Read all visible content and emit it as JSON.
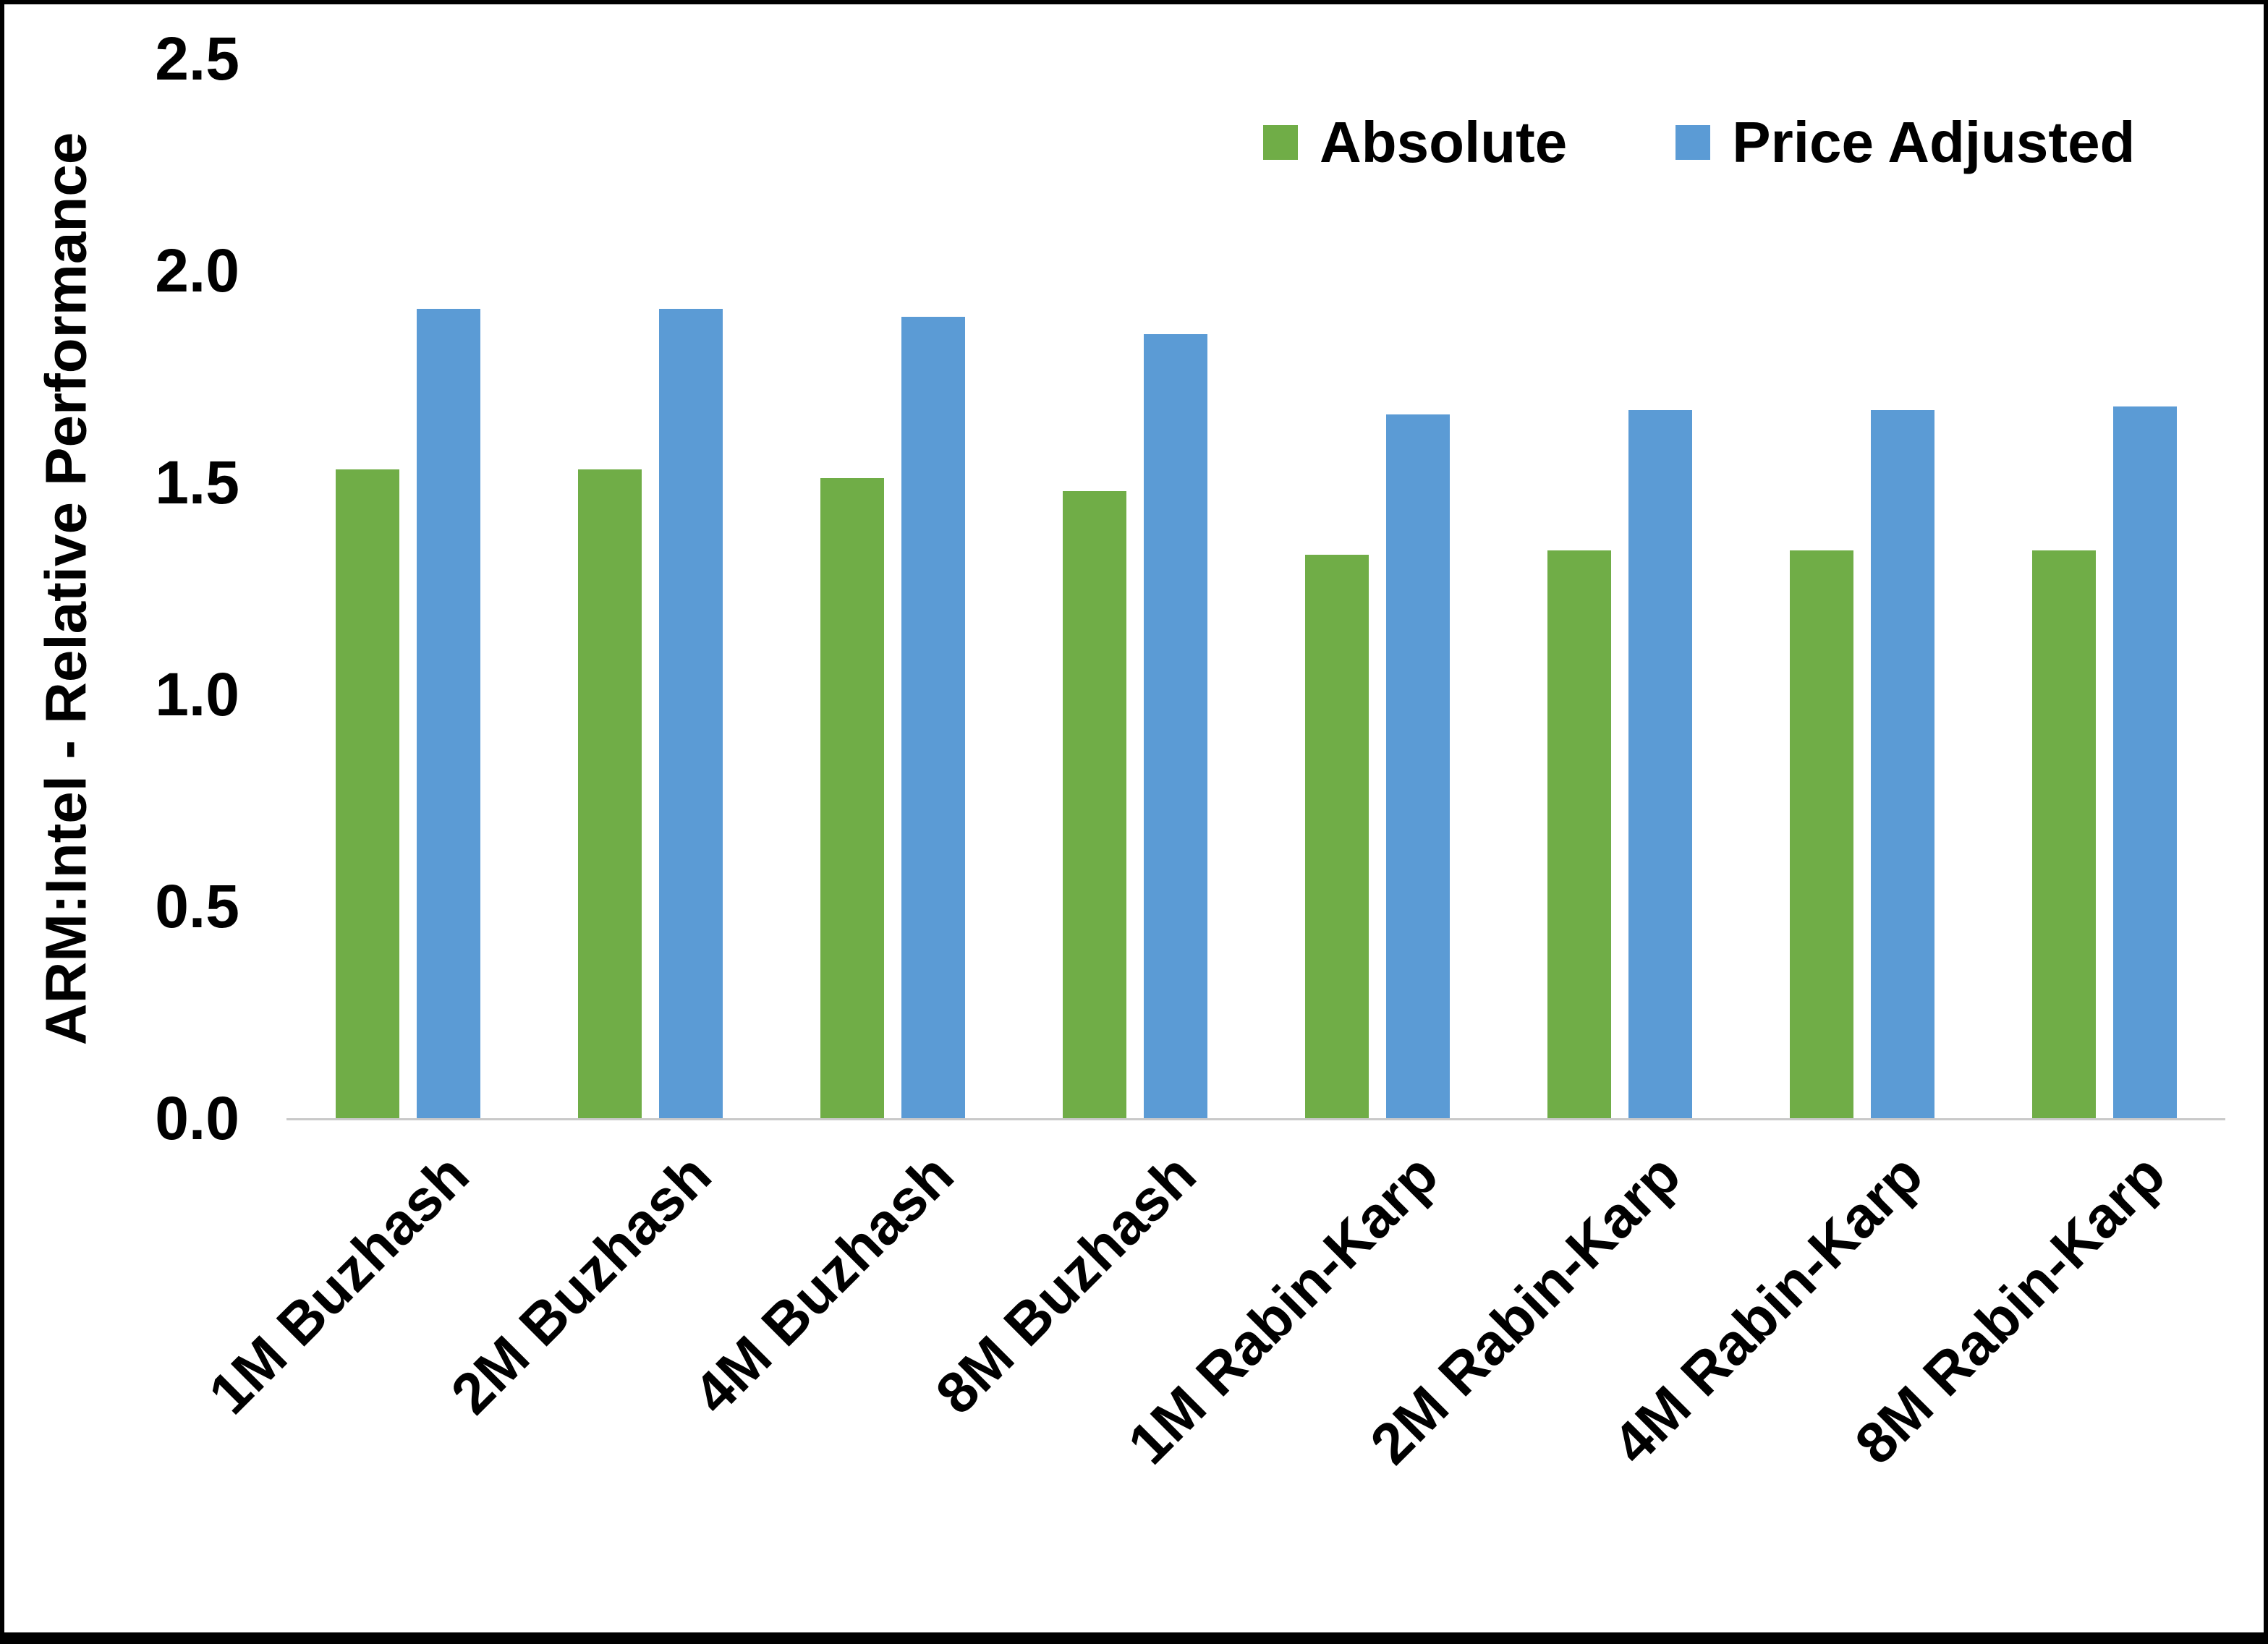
{
  "chart_data": {
    "type": "bar",
    "categories": [
      "1M Buzhash",
      "2M Buzhash",
      "4M Buzhash",
      "8M Buzhash",
      "1M Rabin-Karp",
      "2M Rabin-Karp",
      "4M Rabin-Karp",
      "8M Rabin-Karp"
    ],
    "series": [
      {
        "name": "Absolute",
        "color": "#70AD47",
        "values": [
          1.53,
          1.53,
          1.51,
          1.48,
          1.33,
          1.34,
          1.34,
          1.34
        ]
      },
      {
        "name": "Price Adjusted",
        "color": "#5B9BD5",
        "values": [
          1.91,
          1.91,
          1.89,
          1.85,
          1.66,
          1.67,
          1.67,
          1.68
        ]
      }
    ],
    "title": "",
    "xlabel": "",
    "ylabel": "ARM:Intel - Relative Performance",
    "ylim": [
      0,
      2.5
    ],
    "yticks": [
      0,
      0.5,
      1,
      1.5,
      2,
      2.5
    ],
    "ytick_labels": [
      "0.0",
      "0.5",
      "1.0",
      "1.5",
      "2.0",
      "2.5"
    ],
    "grid": false,
    "legend_position": "top-right",
    "axis_line_color": "#c9c9c9",
    "text_color": "#000000"
  }
}
